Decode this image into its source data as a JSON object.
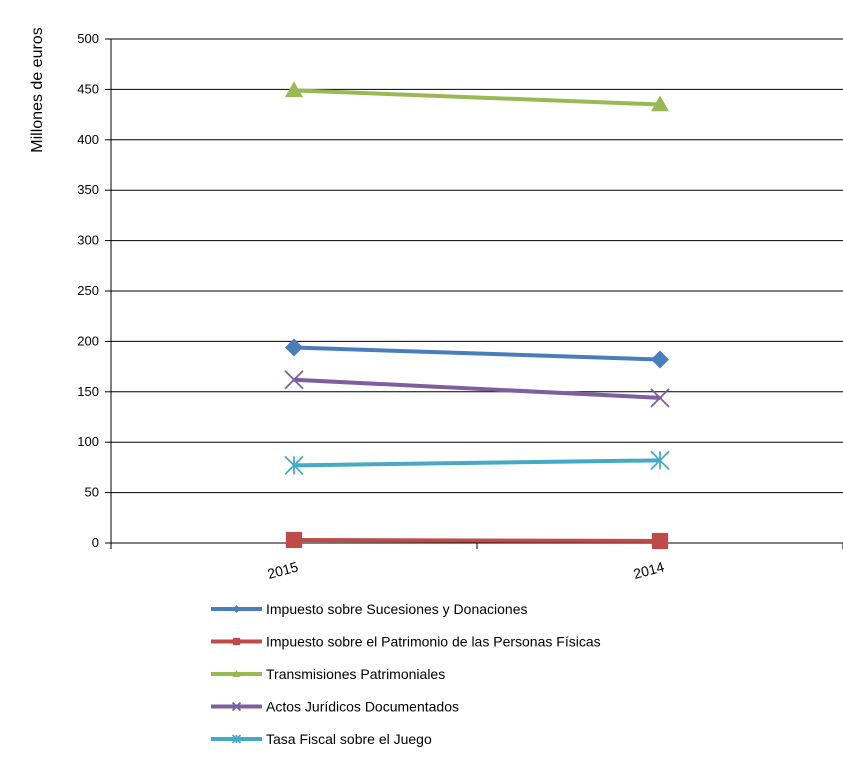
{
  "chart_data": {
    "type": "line",
    "title": "",
    "xlabel": "",
    "ylabel": "Millones de euros",
    "categories": [
      "2015",
      "2014"
    ],
    "ylim": [
      0,
      500
    ],
    "yticks": [
      0,
      50,
      100,
      150,
      200,
      250,
      300,
      350,
      400,
      450,
      500
    ],
    "grid": true,
    "legend_position": "bottom",
    "series": [
      {
        "name": "Impuesto sobre Sucesiones y Donaciones",
        "values": [
          194,
          182
        ],
        "color": "#4a7ebb",
        "marker": "diamond"
      },
      {
        "name": "Impuesto sobre el Patrimonio de las Personas Físicas",
        "values": [
          3,
          2
        ],
        "color": "#be4b48",
        "marker": "square"
      },
      {
        "name": "Transmisiones Patrimoniales",
        "values": [
          449,
          435
        ],
        "color": "#98b954",
        "marker": "triangle"
      },
      {
        "name": "Actos Jurídicos Documentados",
        "values": [
          162,
          144
        ],
        "color": "#7d5fa0",
        "marker": "x"
      },
      {
        "name": "Tasa Fiscal sobre el Juego",
        "values": [
          77,
          82
        ],
        "color": "#46aac5",
        "marker": "asterisk"
      }
    ]
  }
}
